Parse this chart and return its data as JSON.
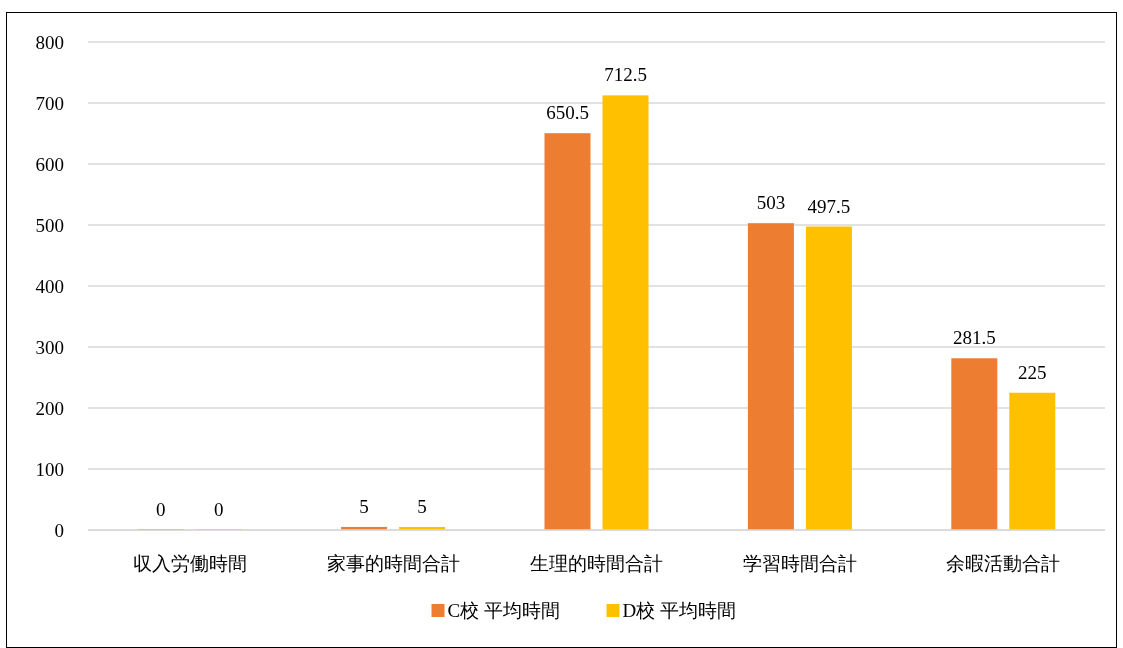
{
  "chart_data": {
    "type": "bar",
    "categories": [
      "収入労働時間",
      "家事的時間合計",
      "生理的時間合計",
      "学習時間合計",
      "余暇活動合計"
    ],
    "series": [
      {
        "name": "C校 平均時間",
        "color": "#ed7d31",
        "values": [
          0,
          5,
          650.5,
          503,
          281.5
        ]
      },
      {
        "name": "D校 平均時間",
        "color": "#ffc000",
        "values": [
          0,
          5,
          712.5,
          497.5,
          225
        ]
      }
    ],
    "ylim": [
      0,
      800
    ],
    "yticks": [
      0,
      100,
      200,
      300,
      400,
      500,
      600,
      700,
      800
    ],
    "grid": "y",
    "legend": "bottom",
    "data_labels": true
  }
}
